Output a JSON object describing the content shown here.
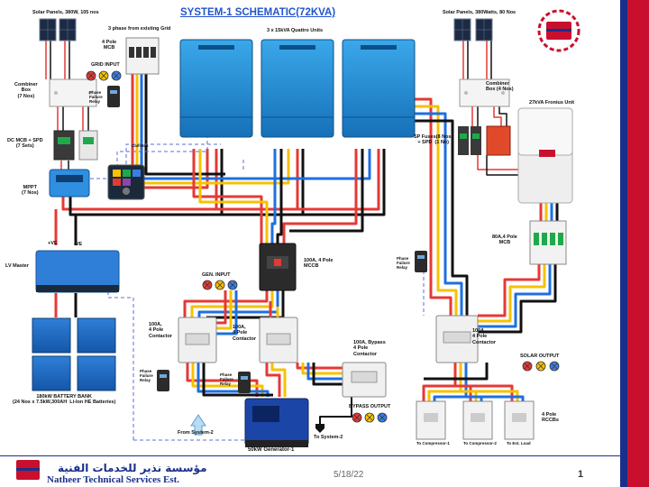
{
  "title": "SYSTEM-1 SCHEMATIC(72KVA)",
  "colors": {
    "red": "#e53935",
    "yellow": "#f6c200",
    "blue": "#1e6fe0",
    "black": "#111111",
    "inverter": "#1f8fd6",
    "accent_blue": "#2255cc"
  },
  "labels": {
    "solar_left": "Solar Panels, 380W, 105 nos",
    "solar_right": "Solar Panels, 380Watts, 80 Nos",
    "three_phase": "3 phase from existing Grid",
    "quattro": "3 x 15kVA Quattro Units",
    "mcb_4pole": "4 Pole\nMCB",
    "grid_input": "GRID INPUT",
    "combiner_left": "Combiner\nBox\n(7 Nos)",
    "phase_failure": "Phase\nFailure\nRelay",
    "dc_mcb_spd": "DC MCB + SPD\n(7 Sets)",
    "can_bus": "Can-Bus",
    "mppt": "MPPT\n(7 Nos)",
    "combiner_right": "Combiner\nBox (4 Nos)",
    "fronius": "27kVA Fronius Unit",
    "sp_fuses": "SP Fuses(8 Nos)\n+ SPD  (1 No)",
    "mcb_80a": "80A,4 Pole\nMCB",
    "plus_ve": "+VE",
    "minus_ve": "-VE",
    "lv_master": "LV Master",
    "mccb_100a": "100A, 4 Pole\nMCCB",
    "gen_input": "GEN. INPUT",
    "contactor_a": "100A,\n4 Pole\nContactor",
    "contactor_b": "100A,\n4 Pole\nContactor",
    "contactor_c": "100A\n4 Pole\nContactor",
    "bypass_contactor": "100A, Bypass\n4 Pole\nContactor",
    "solar_output": "SOLAR OUTPUT",
    "battery_bank": "180kW BATTERY BANK\n(24 Nos x 7.5kW,300AH  Li-Ion HE Batteries)",
    "bypass_output": "BYPASS OUTPUT",
    "from_system2": "From System-2",
    "to_system2": "To System-2",
    "generator": "50kW Generator-1",
    "rccbs": "4 Pole\nRCCBs",
    "to_comp1": "To Compressor-1",
    "to_comp2": "To Compressor-2",
    "to_est": "To Est. Load"
  },
  "footer": {
    "company_ar": "مؤسسة نذير للخدمات الفنية",
    "company_en": "Natheer Technical Services Est.",
    "date": "5/18/22",
    "page": "1",
    "logo_text": "ns"
  }
}
